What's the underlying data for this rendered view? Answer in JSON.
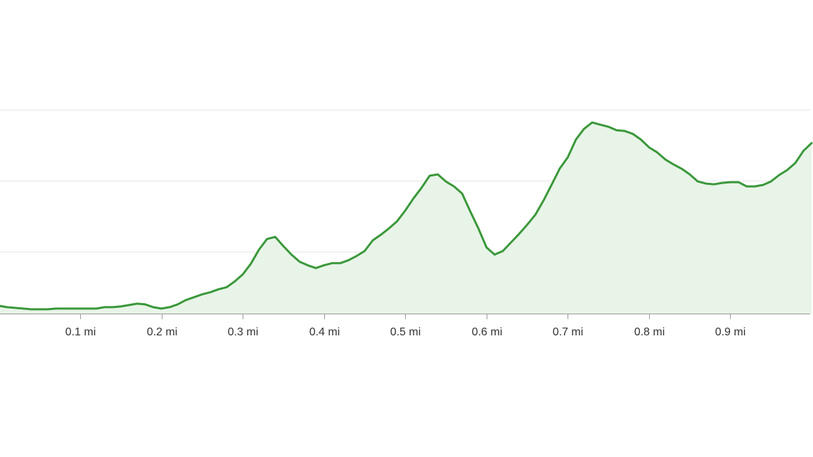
{
  "chart_data": {
    "type": "area",
    "color": "#3a983a",
    "fill_color": "#e8f4e8",
    "grid": true,
    "xlim": [
      0,
      1
    ],
    "ylim": [
      0.13,
      4
    ],
    "xticks": [
      {
        "value": 0.1,
        "label": "0.1 mi"
      },
      {
        "value": 0.2,
        "label": "0.2 mi"
      },
      {
        "value": 0.3,
        "label": "0.3 mi"
      },
      {
        "value": 0.4,
        "label": "0.4 mi"
      },
      {
        "value": 0.5,
        "label": "0.5 mi"
      },
      {
        "value": 0.6,
        "label": "0.6 mi"
      },
      {
        "value": 0.7,
        "label": "0.7 mi"
      },
      {
        "value": 0.8,
        "label": "0.8 mi"
      },
      {
        "value": 0.9,
        "label": "0.9 mi"
      }
    ],
    "yticks": [
      1,
      2,
      3
    ],
    "x": [
      0,
      0.01,
      0.02,
      0.03,
      0.04,
      0.05,
      0.06,
      0.07,
      0.08,
      0.09,
      0.1,
      0.11,
      0.12,
      0.13,
      0.14,
      0.15,
      0.16,
      0.17,
      0.18,
      0.19,
      0.2,
      0.21,
      0.22,
      0.23,
      0.24,
      0.25,
      0.26,
      0.27,
      0.28,
      0.29,
      0.3,
      0.31,
      0.32,
      0.33,
      0.34,
      0.35,
      0.36,
      0.37,
      0.38,
      0.39,
      0.4,
      0.41,
      0.42,
      0.43,
      0.44,
      0.45,
      0.46,
      0.47,
      0.48,
      0.49,
      0.5,
      0.51,
      0.52,
      0.53,
      0.54,
      0.55,
      0.56,
      0.57,
      0.58,
      0.59,
      0.6,
      0.61,
      0.62,
      0.63,
      0.64,
      0.65,
      0.66,
      0.67,
      0.68,
      0.69,
      0.7,
      0.71,
      0.72,
      0.73,
      0.74,
      0.75,
      0.76,
      0.77,
      0.78,
      0.79,
      0.8,
      0.81,
      0.82,
      0.83,
      0.84,
      0.85,
      0.86,
      0.87,
      0.88,
      0.89,
      0.9,
      0.91,
      0.92,
      0.93,
      0.94,
      0.95,
      0.96,
      0.97,
      0.98,
      0.99,
      1
    ],
    "values": [
      0.24,
      0.22,
      0.21,
      0.2,
      0.19,
      0.19,
      0.19,
      0.2,
      0.2,
      0.2,
      0.2,
      0.2,
      0.2,
      0.22,
      0.22,
      0.23,
      0.25,
      0.27,
      0.26,
      0.22,
      0.2,
      0.22,
      0.26,
      0.32,
      0.36,
      0.4,
      0.43,
      0.47,
      0.5,
      0.58,
      0.68,
      0.83,
      1.03,
      1.18,
      1.21,
      1.08,
      0.96,
      0.86,
      0.81,
      0.77,
      0.81,
      0.84,
      0.84,
      0.88,
      0.94,
      1.01,
      1.16,
      1.24,
      1.33,
      1.43,
      1.58,
      1.75,
      1.9,
      2.07,
      2.09,
      1.99,
      1.92,
      1.82,
      1.57,
      1.33,
      1.06,
      0.96,
      1.01,
      1.13,
      1.25,
      1.38,
      1.52,
      1.72,
      1.94,
      2.17,
      2.33,
      2.58,
      2.73,
      2.82,
      2.79,
      2.76,
      2.71,
      2.7,
      2.66,
      2.58,
      2.47,
      2.4,
      2.3,
      2.23,
      2.17,
      2.09,
      1.99,
      1.96,
      1.95,
      1.97,
      1.98,
      1.98,
      1.92,
      1.92,
      1.94,
      1.99,
      2.08,
      2.15,
      2.25,
      2.42,
      2.53
    ]
  }
}
